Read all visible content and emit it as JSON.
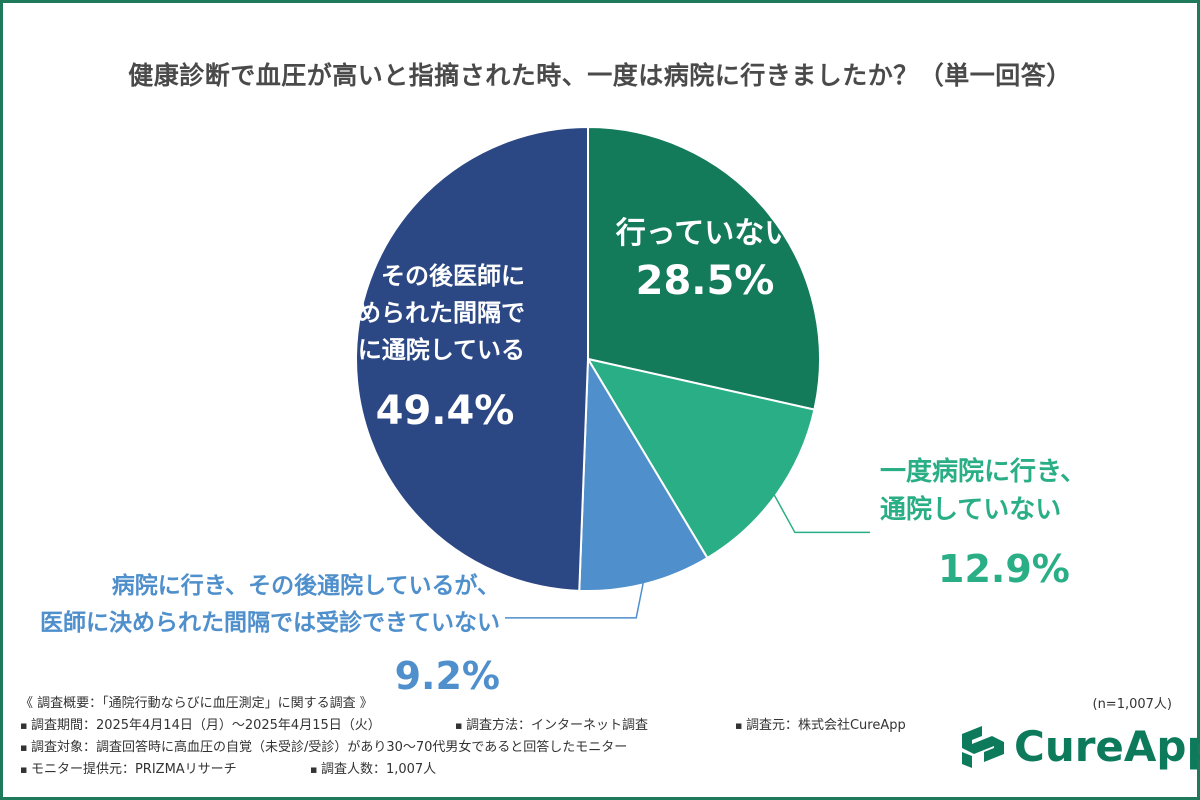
{
  "title": "健康診断で血圧が高いと指摘された時、一度は病院に行きましたか？（単一回答）",
  "chart_data": {
    "type": "pie",
    "title": "健康診断で血圧が高いと指摘された時、一度は病院に行きましたか？（単一回答）",
    "slices": [
      {
        "lines": [
          "行っていない"
        ],
        "value": 28.5,
        "label": "28.5%",
        "color": "#137a5a",
        "text_color": "#ffffff"
      },
      {
        "lines": [
          "一度病院に行き、",
          "通院していない"
        ],
        "value": 12.9,
        "label": "12.9%",
        "color": "#2aae86",
        "text_color": "#2aae86"
      },
      {
        "lines": [
          "病院に行き、その後通院しているが、",
          "医師に決められた間隔では受診できていない"
        ],
        "value": 9.2,
        "label": "9.2%",
        "color": "#4e8fcc",
        "text_color": "#4e8fcc"
      },
      {
        "lines": [
          "病院に行き、その後医師に",
          "決められた間隔で",
          "定期的に通院している"
        ],
        "value": 49.4,
        "label": "49.4%",
        "color": "#2b4784",
        "text_color": "#ffffff"
      }
    ],
    "sample_size": "(n=1,007人)"
  },
  "footer": {
    "overview": "《 調査概要：「通院行動ならびに血圧測定」に関する調査 》",
    "period": "調査期間：2025年4月14日（月）～2025年4月15日（火）",
    "method": "調査方法：インターネット調査",
    "source": "調査元：株式会社CureApp",
    "target": "調査対象：調査回答時に高血圧の自覚（未受診/受診）があり30～70代男女であると回答したモニター",
    "provider": "モニター提供元：PRIZMAリサーチ",
    "count": "調査人数：1,007人"
  },
  "logo": {
    "text": "CureApp",
    "color": "#0e7a5c",
    "icon": "cureapp-logo-icon"
  }
}
